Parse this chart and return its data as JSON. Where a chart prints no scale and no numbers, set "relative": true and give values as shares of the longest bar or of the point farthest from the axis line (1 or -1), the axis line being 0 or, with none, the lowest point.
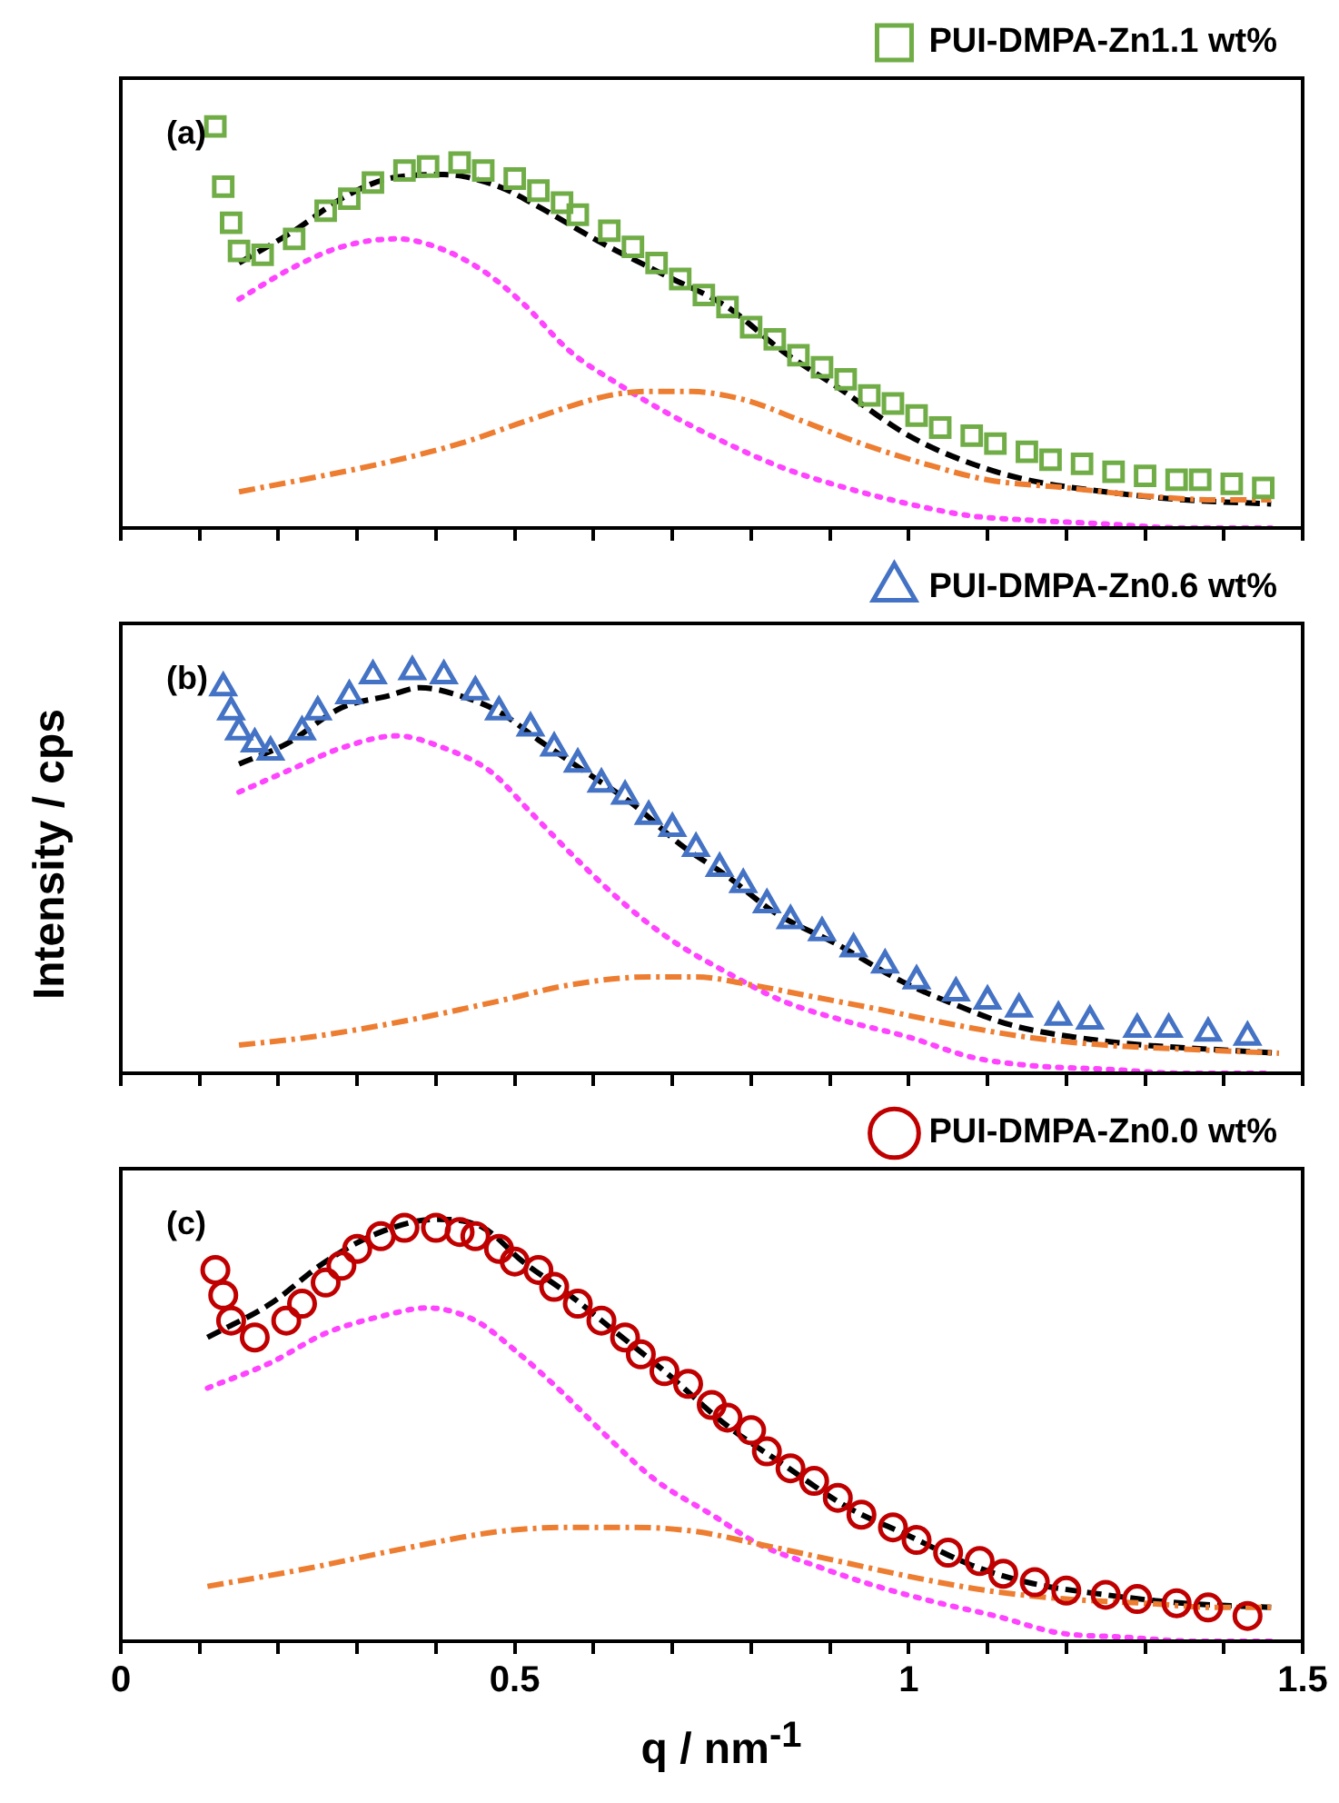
{
  "chart_data": [
    {
      "type": "scatter",
      "relative": true,
      "annotations": [
        "(a)"
      ],
      "legend": "top right",
      "tick_labels": false,
      "xlim": [
        0,
        1.5
      ],
      "xticks": [
        0,
        {
          "value": 0.1,
          "label": null
        },
        {
          "value": 0.2,
          "label": null
        },
        {
          "value": 0.3,
          "label": null
        },
        {
          "value": 0.4,
          "label": null
        },
        0.5,
        {
          "value": 0.6,
          "label": null
        },
        {
          "value": 0.7,
          "label": null
        },
        {
          "value": 0.8,
          "label": null
        },
        {
          "value": 0.9,
          "label": null
        },
        1,
        {
          "value": 1.1,
          "label": null
        },
        {
          "value": 1.2,
          "label": null
        },
        {
          "value": 1.3,
          "label": null
        },
        {
          "value": 1.4,
          "label": null
        },
        1.5
      ],
      "series": [
        {
          "type": "scatter",
          "name": "PUI-DMPA-Zn1.1 wt%",
          "color": "#70ad47",
          "marker": "square",
          "x": [
            0.12,
            0.13,
            0.14,
            0.15,
            0.18,
            0.22,
            0.26,
            0.29,
            0.32,
            0.36,
            0.39,
            0.43,
            0.46,
            0.5,
            0.53,
            0.56,
            0.58,
            0.62,
            0.65,
            0.68,
            0.71,
            0.74,
            0.77,
            0.8,
            0.83,
            0.86,
            0.89,
            0.92,
            0.95,
            0.98,
            1.01,
            1.04,
            1.08,
            1.11,
            1.15,
            1.18,
            1.22,
            1.26,
            1.3,
            1.34,
            1.37,
            1.41,
            1.45
          ],
          "values": [
            1.0,
            0.85,
            0.76,
            0.69,
            0.68,
            0.72,
            0.79,
            0.82,
            0.86,
            0.89,
            0.9,
            0.91,
            0.89,
            0.87,
            0.84,
            0.81,
            0.78,
            0.74,
            0.7,
            0.66,
            0.62,
            0.58,
            0.55,
            0.5,
            0.47,
            0.43,
            0.4,
            0.37,
            0.33,
            0.31,
            0.28,
            0.25,
            0.23,
            0.21,
            0.19,
            0.17,
            0.16,
            0.14,
            0.13,
            0.12,
            0.12,
            0.11,
            0.1
          ]
        },
        {
          "type": "line",
          "color": "#000000",
          "line_style": "dashed",
          "x": [
            0.15,
            0.22,
            0.28,
            0.34,
            0.41,
            0.48,
            0.53,
            0.61,
            0.69,
            0.77,
            0.84,
            0.91,
            1.0,
            1.08,
            1.15,
            1.25,
            1.35,
            1.46
          ],
          "values": [
            0.66,
            0.74,
            0.82,
            0.87,
            0.88,
            0.85,
            0.8,
            0.71,
            0.63,
            0.55,
            0.44,
            0.35,
            0.23,
            0.16,
            0.12,
            0.09,
            0.07,
            0.06
          ]
        },
        {
          "type": "line",
          "color": "#ff44ff",
          "line_style": "dotted",
          "x": [
            0.15,
            0.22,
            0.28,
            0.35,
            0.4,
            0.46,
            0.51,
            0.57,
            0.63,
            0.69,
            0.77,
            0.84,
            0.92,
            1.0,
            1.08,
            1.15,
            1.25,
            1.35,
            1.46
          ],
          "values": [
            0.57,
            0.65,
            0.7,
            0.72,
            0.7,
            0.64,
            0.56,
            0.44,
            0.36,
            0.29,
            0.21,
            0.15,
            0.1,
            0.06,
            0.03,
            0.02,
            0.01,
            0.0,
            0.0
          ]
        },
        {
          "type": "line",
          "color": "#ed7d31",
          "line_style": "dashdot",
          "x": [
            0.15,
            0.23,
            0.33,
            0.43,
            0.52,
            0.62,
            0.67,
            0.72,
            0.79,
            0.86,
            0.94,
            1.02,
            1.1,
            1.2,
            1.3,
            1.39,
            1.46
          ],
          "values": [
            0.09,
            0.12,
            0.16,
            0.21,
            0.27,
            0.33,
            0.34,
            0.34,
            0.32,
            0.27,
            0.21,
            0.16,
            0.12,
            0.1,
            0.08,
            0.07,
            0.07
          ]
        }
      ]
    },
    {
      "type": "scatter",
      "relative": true,
      "ylabel": "Intensity / cps",
      "annotations": [
        "(b)"
      ],
      "legend": "top right",
      "tick_labels": false,
      "xlim": [
        0,
        1.5
      ],
      "xticks": [
        0,
        {
          "value": 0.1,
          "label": null
        },
        {
          "value": 0.2,
          "label": null
        },
        {
          "value": 0.3,
          "label": null
        },
        {
          "value": 0.4,
          "label": null
        },
        0.5,
        {
          "value": 0.6,
          "label": null
        },
        {
          "value": 0.7,
          "label": null
        },
        {
          "value": 0.8,
          "label": null
        },
        {
          "value": 0.9,
          "label": null
        },
        1,
        {
          "value": 1.1,
          "label": null
        },
        {
          "value": 1.2,
          "label": null
        },
        {
          "value": 1.3,
          "label": null
        },
        {
          "value": 1.4,
          "label": null
        },
        1.5
      ],
      "series": [
        {
          "type": "scatter",
          "name": "PUI-DMPA-Zn0.6 wt%",
          "color": "#4472c4",
          "marker": "triangle",
          "x": [
            0.13,
            0.14,
            0.15,
            0.17,
            0.19,
            0.23,
            0.25,
            0.29,
            0.32,
            0.37,
            0.41,
            0.45,
            0.48,
            0.52,
            0.55,
            0.58,
            0.61,
            0.64,
            0.67,
            0.7,
            0.73,
            0.76,
            0.79,
            0.82,
            0.85,
            0.89,
            0.93,
            0.97,
            1.01,
            1.06,
            1.1,
            1.14,
            1.19,
            1.23,
            1.29,
            1.33,
            1.38,
            1.43
          ],
          "values": [
            0.96,
            0.9,
            0.85,
            0.82,
            0.8,
            0.85,
            0.9,
            0.94,
            0.99,
            1.0,
            0.99,
            0.95,
            0.9,
            0.86,
            0.81,
            0.77,
            0.72,
            0.69,
            0.64,
            0.61,
            0.56,
            0.51,
            0.47,
            0.42,
            0.38,
            0.35,
            0.31,
            0.27,
            0.23,
            0.2,
            0.18,
            0.16,
            0.14,
            0.13,
            0.11,
            0.11,
            0.1,
            0.09
          ]
        },
        {
          "type": "line",
          "color": "#000000",
          "line_style": "dashed",
          "x": [
            0.15,
            0.21,
            0.28,
            0.34,
            0.38,
            0.43,
            0.48,
            0.53,
            0.59,
            0.65,
            0.71,
            0.77,
            0.83,
            0.91,
            0.99,
            1.06,
            1.13,
            1.21,
            1.3,
            1.38,
            1.47
          ],
          "values": [
            0.77,
            0.82,
            0.91,
            0.94,
            0.96,
            0.94,
            0.9,
            0.83,
            0.75,
            0.67,
            0.57,
            0.49,
            0.4,
            0.32,
            0.23,
            0.17,
            0.12,
            0.09,
            0.07,
            0.06,
            0.05
          ]
        },
        {
          "type": "line",
          "color": "#ff44ff",
          "line_style": "dotted",
          "x": [
            0.15,
            0.22,
            0.28,
            0.35,
            0.41,
            0.47,
            0.52,
            0.58,
            0.64,
            0.7,
            0.77,
            0.84,
            0.92,
            1.0,
            1.08,
            1.15,
            1.25,
            1.35,
            1.46
          ],
          "values": [
            0.7,
            0.76,
            0.81,
            0.84,
            0.81,
            0.75,
            0.65,
            0.53,
            0.42,
            0.33,
            0.25,
            0.18,
            0.13,
            0.09,
            0.04,
            0.02,
            0.01,
            0.0,
            0.0
          ]
        },
        {
          "type": "line",
          "color": "#ed7d31",
          "line_style": "dashdot",
          "x": [
            0.15,
            0.24,
            0.36,
            0.48,
            0.57,
            0.67,
            0.73,
            0.8,
            0.88,
            0.96,
            1.06,
            1.15,
            1.25,
            1.35,
            1.47
          ],
          "values": [
            0.07,
            0.09,
            0.13,
            0.18,
            0.22,
            0.24,
            0.24,
            0.22,
            0.19,
            0.16,
            0.12,
            0.09,
            0.07,
            0.06,
            0.05
          ]
        }
      ]
    },
    {
      "type": "scatter",
      "relative": true,
      "annotations": [
        "(c)"
      ],
      "legend": "top right",
      "tick_labels": "x",
      "xlim": [
        0,
        1.5
      ],
      "xticks": [
        0,
        {
          "value": 0.1,
          "label": null
        },
        {
          "value": 0.2,
          "label": null
        },
        {
          "value": 0.3,
          "label": null
        },
        {
          "value": 0.4,
          "label": null
        },
        0.5,
        {
          "value": 0.6,
          "label": null
        },
        {
          "value": 0.7,
          "label": null
        },
        {
          "value": 0.8,
          "label": null
        },
        {
          "value": 0.9,
          "label": null
        },
        1,
        {
          "value": 1.1,
          "label": null
        },
        {
          "value": 1.2,
          "label": null
        },
        {
          "value": 1.3,
          "label": null
        },
        {
          "value": 1.4,
          "label": null
        },
        1.5
      ],
      "xlabel": "q / nm$^{-1}$",
      "series": [
        {
          "type": "scatter",
          "name": "PUI-DMPA-Zn0.0 wt%",
          "color": "#c00000",
          "marker": "circle",
          "x": [
            0.12,
            0.13,
            0.14,
            0.17,
            0.21,
            0.23,
            0.26,
            0.28,
            0.3,
            0.33,
            0.36,
            0.4,
            0.43,
            0.45,
            0.48,
            0.5,
            0.53,
            0.55,
            0.58,
            0.61,
            0.64,
            0.66,
            0.69,
            0.72,
            0.75,
            0.77,
            0.8,
            0.82,
            0.85,
            0.88,
            0.91,
            0.94,
            0.98,
            1.01,
            1.05,
            1.09,
            1.12,
            1.16,
            1.2,
            1.25,
            1.29,
            1.34,
            1.38,
            1.43
          ],
          "values": [
            0.88,
            0.82,
            0.76,
            0.72,
            0.76,
            0.8,
            0.85,
            0.89,
            0.93,
            0.96,
            0.98,
            0.98,
            0.97,
            0.96,
            0.93,
            0.9,
            0.88,
            0.84,
            0.8,
            0.76,
            0.72,
            0.68,
            0.64,
            0.61,
            0.56,
            0.53,
            0.5,
            0.45,
            0.41,
            0.38,
            0.34,
            0.3,
            0.27,
            0.24,
            0.21,
            0.19,
            0.16,
            0.14,
            0.12,
            0.11,
            0.1,
            0.09,
            0.08,
            0.06
          ]
        },
        {
          "type": "line",
          "color": "#000000",
          "line_style": "dashed",
          "x": [
            0.11,
            0.19,
            0.26,
            0.33,
            0.4,
            0.46,
            0.51,
            0.57,
            0.63,
            0.69,
            0.77,
            0.84,
            0.92,
            1.0,
            1.08,
            1.15,
            1.25,
            1.35,
            1.46
          ],
          "values": [
            0.72,
            0.8,
            0.9,
            0.97,
            1.0,
            0.98,
            0.9,
            0.82,
            0.73,
            0.64,
            0.51,
            0.42,
            0.32,
            0.25,
            0.18,
            0.14,
            0.11,
            0.09,
            0.08
          ]
        },
        {
          "type": "line",
          "color": "#ff44ff",
          "line_style": "dotted",
          "x": [
            0.11,
            0.19,
            0.26,
            0.33,
            0.39,
            0.45,
            0.5,
            0.56,
            0.62,
            0.68,
            0.75,
            0.81,
            0.88,
            0.96,
            1.04,
            1.11,
            1.19,
            1.27,
            1.37,
            1.46
          ],
          "values": [
            0.6,
            0.66,
            0.73,
            0.77,
            0.79,
            0.76,
            0.69,
            0.59,
            0.48,
            0.38,
            0.3,
            0.23,
            0.18,
            0.13,
            0.09,
            0.06,
            0.02,
            0.01,
            0.0,
            0.0
          ]
        },
        {
          "type": "line",
          "color": "#ed7d31",
          "line_style": "dashdot",
          "x": [
            0.11,
            0.23,
            0.36,
            0.48,
            0.57,
            0.65,
            0.73,
            0.81,
            0.91,
            1.01,
            1.1,
            1.2,
            1.3,
            1.39,
            1.46
          ],
          "values": [
            0.13,
            0.17,
            0.22,
            0.26,
            0.27,
            0.27,
            0.26,
            0.23,
            0.19,
            0.15,
            0.12,
            0.1,
            0.09,
            0.08,
            0.08
          ]
        }
      ]
    }
  ]
}
